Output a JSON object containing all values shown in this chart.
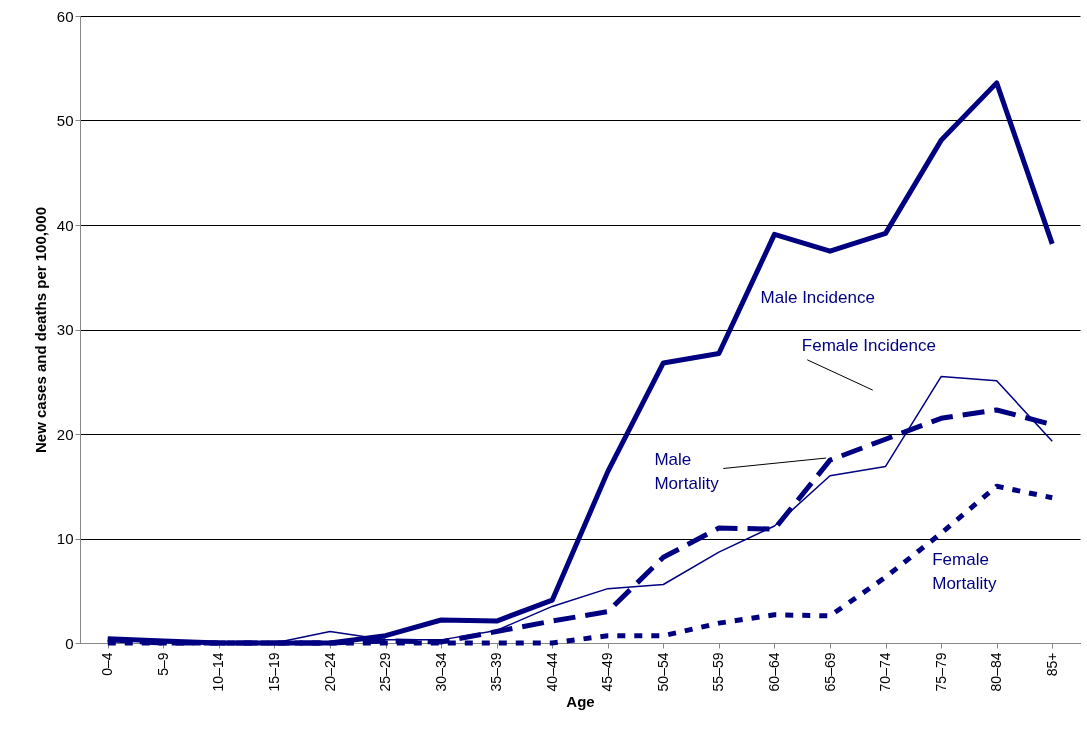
{
  "chart_data": {
    "type": "line",
    "xlabel": "Age",
    "ylabel": "New cases and deaths per 100,000",
    "categories": [
      "0–4",
      "5–9",
      "10–14",
      "15–19",
      "20–24",
      "25–29",
      "30–34",
      "35–39",
      "40–44",
      "45–49",
      "50–54",
      "55–59",
      "60–64",
      "65–69",
      "70–74",
      "75–79",
      "80–84",
      "85+"
    ],
    "series": [
      {
        "name": "Male Incidence",
        "color": "#000080",
        "line_style": "solid",
        "values": [
          0.4,
          0.2,
          0,
          0,
          0,
          0.7,
          2.2,
          2.1,
          4.1,
          16.4,
          26.8,
          27.7,
          39.1,
          37.5,
          39.2,
          48.1,
          53.6,
          38.2
        ]
      },
      {
        "name": "Female Incidence",
        "color": "#000080",
        "line_style": "solid",
        "values": [
          0.2,
          0.3,
          0,
          0,
          1.1,
          0.3,
          0.3,
          1.2,
          3.5,
          5.2,
          5.6,
          8.7,
          11.2,
          16,
          16.9,
          25.5,
          25.1,
          19.3
        ]
      },
      {
        "name": "Male Mortality",
        "color": "#000080",
        "line_style": "dashed",
        "values": [
          0.3,
          0,
          0,
          0,
          0,
          0.2,
          0.1,
          1.1,
          2.1,
          3,
          8.2,
          11,
          10.9,
          17.5,
          19.5,
          21.5,
          22.3,
          20.9
        ]
      },
      {
        "name": "Female Mortality",
        "color": "#000080",
        "line_style": "dotted",
        "values": [
          0,
          0,
          0,
          0,
          0,
          0,
          0,
          0,
          0,
          0.7,
          0.7,
          1.9,
          2.7,
          2.6,
          6.3,
          10.5,
          15,
          13.9
        ]
      }
    ],
    "ylim": [
      0,
      60
    ],
    "yticks": [
      0,
      10,
      20,
      30,
      40,
      50,
      60
    ],
    "grid": "y",
    "legend": false
  }
}
